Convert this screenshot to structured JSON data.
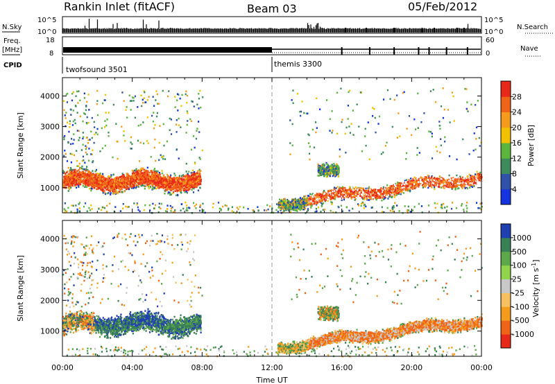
{
  "header": {
    "station": "Rankin Inlet (fitACF)",
    "beam": "Beam 03",
    "date": "05/Feb/2012"
  },
  "strips": {
    "nsky_label": "N.Sky",
    "nsky_ticks": [
      "10^5",
      "10^0"
    ],
    "nsearch_label": "N.Search",
    "nsearch_ticks": [
      "10^5",
      "10^0"
    ],
    "freq_label": "Freq.",
    "freq_unit": "[MHz]",
    "freq_ticks": [
      "18",
      "8"
    ],
    "nave_label": "Nave",
    "nave_ticks": [
      "60",
      "0"
    ],
    "cpid_label": "CPID",
    "cpid_segments": [
      {
        "name": "twofsound 3501",
        "start_hour": 0,
        "end_hour": 12
      },
      {
        "name": "themis 3300",
        "start_hour": 12,
        "end_hour": 24
      }
    ]
  },
  "chart_data": [
    {
      "type": "heatmap",
      "quantity": "Power",
      "ylabel": "Slant Range [km]",
      "xlabel": "Time UT",
      "x_range_hours": [
        0,
        24
      ],
      "ylim_km": [
        180,
        4600
      ],
      "x_ticks": [
        "00:00",
        "04:00",
        "08:00",
        "12:00",
        "16:00",
        "20:00",
        "00:00"
      ],
      "y_ticks": [
        "1000",
        "2000",
        "3000",
        "4000"
      ],
      "colorbar": {
        "label": "Power [dB]",
        "tick_labels": [
          "4",
          "8",
          "12",
          "16",
          "20",
          "24",
          "28"
        ],
        "colors": [
          "#1533e0",
          "#2f52a8",
          "#3d8a5a",
          "#5cb53d",
          "#f2c200",
          "#f59b1e",
          "#f06418",
          "#e82818"
        ]
      },
      "marker_hour": 12
    },
    {
      "type": "heatmap",
      "quantity": "Velocity",
      "ylabel": "Slant Range [km]",
      "xlabel": "Time UT",
      "x_range_hours": [
        0,
        24
      ],
      "ylim_km": [
        180,
        4600
      ],
      "x_ticks": [
        "00:00",
        "04:00",
        "08:00",
        "12:00",
        "16:00",
        "20:00",
        "00:00"
      ],
      "y_ticks": [
        "1000",
        "2000",
        "3000",
        "4000"
      ],
      "colorbar": {
        "label": "Velocity  [m s",
        "label_sup": "-1",
        "label_end": "]",
        "tick_labels": [
          "1000",
          "500",
          "100",
          "25",
          "-25",
          "-100",
          "-500",
          "-1000"
        ],
        "colors": [
          "#2040b0",
          "#3a8055",
          "#5ca84a",
          "#8fd44a",
          "#c8c8c8",
          "#f7c060",
          "#f59b1e",
          "#f06418",
          "#e82818"
        ]
      },
      "marker_hour": 12
    }
  ]
}
